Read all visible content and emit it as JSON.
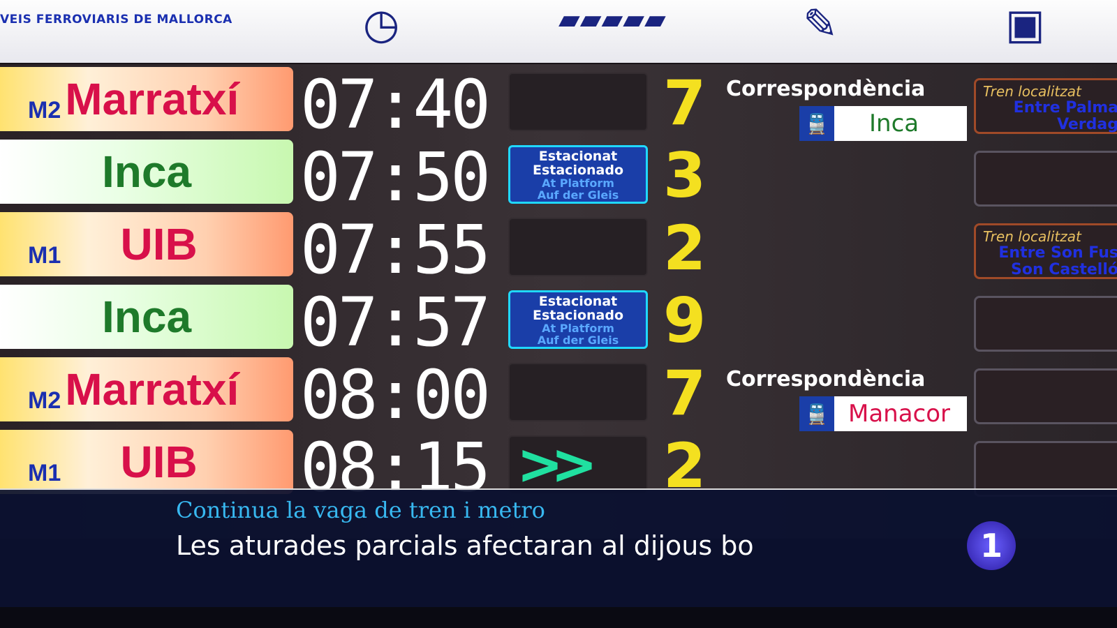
{
  "header": {
    "operator": "VEIS FERROVIARIS DE MALLORCA",
    "icons": [
      "clock-icon",
      "track-icon",
      "signpost-icon",
      "platform-number-icon"
    ]
  },
  "departures": [
    {
      "destination": "Marratxí",
      "line": "M2",
      "type": "metro",
      "time": "07:40",
      "status": "",
      "platform": "7",
      "connection": {
        "label": "Correspondència",
        "destination": "Inca"
      },
      "location": {
        "title": "Tren localitzat",
        "text": "Entre Palma Verdag"
      }
    },
    {
      "destination": "Inca",
      "line": "",
      "type": "train",
      "time": "07:50",
      "status": {
        "ca": "Estacionat",
        "es": "Estacionado",
        "en": "At Platform",
        "de": "Auf der Gleis"
      },
      "platform": "3",
      "location": null
    },
    {
      "destination": "UIB",
      "line": "M1",
      "type": "metro",
      "time": "07:55",
      "status": "",
      "platform": "2",
      "location": {
        "title": "Tren localitzat",
        "text": "Entre Son Fus Son Castelló"
      }
    },
    {
      "destination": "Inca",
      "line": "",
      "type": "train",
      "time": "07:57",
      "status": {
        "ca": "Estacionat",
        "es": "Estacionado",
        "en": "At Platform",
        "de": "Auf der Gleis"
      },
      "platform": "9",
      "location": null
    },
    {
      "destination": "Marratxí",
      "line": "M2",
      "type": "metro",
      "time": "08:00",
      "status": "",
      "platform": "7",
      "connection": {
        "label": "Correspondència",
        "destination": "Manacor"
      },
      "location": null
    },
    {
      "destination": "UIB",
      "line": "M1",
      "type": "metro",
      "time": "08:15",
      "status": "arrows",
      "platform": "2",
      "location": null
    }
  ],
  "caption": {
    "kicker": "Continua la vaga de tren i metro",
    "headline": "Les aturades parcials afectaran al dijous bo",
    "channel": "1"
  }
}
